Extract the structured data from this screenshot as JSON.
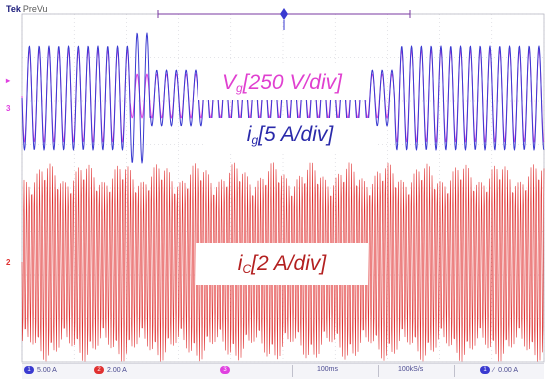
{
  "scope": {
    "brand": "Tek",
    "mode": "PreVu"
  },
  "labels": {
    "vg": {
      "sym": "V",
      "sub": "g",
      "rest": "[250 V/div]"
    },
    "ig": {
      "sym": "i",
      "sub": "g",
      "rest": "[5 A/div]"
    },
    "ic": {
      "sym": "i",
      "sub": "C",
      "rest": "[2 A/div]"
    }
  },
  "markers": {
    "ch3": "3",
    "ch2": "2"
  },
  "status": {
    "ch1_scale": "5.00 A",
    "ch2_scale": "2.00 A",
    "time": "100ms",
    "sample_rate": "100kS/s",
    "trigger_level": "0.00 A"
  },
  "colors": {
    "voltage": "#e040e0",
    "grid_current": "#3a3ad0",
    "cap_current": "#e03030",
    "grid": "#c8c8d0"
  }
}
